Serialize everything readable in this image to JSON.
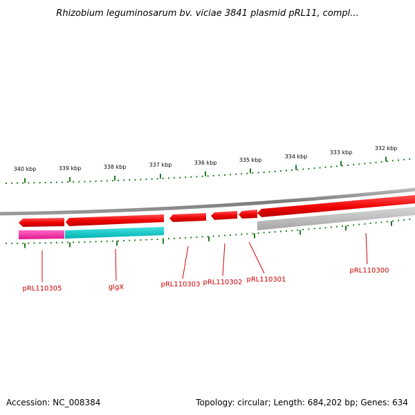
{
  "title": "Rhizobium leguminosarum bv. viciae 3841 plasmid pRL11, compl...",
  "accession_text": "Accession: NC_008384",
  "summary_text": "Topology: circular; Length: 684,202 bp; Genes: 634",
  "colors": {
    "background": "#ffffff",
    "backbone": "#808080",
    "cds_forward": "#ff0000",
    "cds_highlight_pink": "#ff2faa",
    "cds_highlight_cyan": "#00c8c8",
    "cds_shadow_grey": "#bcbcbc",
    "scale_ticks": "#1f7a1f",
    "gene_label": "#cc0000"
  },
  "scale_labels": [
    "340 kbp",
    "339 kbp",
    "338 kbp",
    "337 kbp",
    "336 kbp",
    "335 kbp",
    "334 kbp",
    "333 kbp",
    "332 kbp"
  ],
  "genes": [
    {
      "label": "pRL110305"
    },
    {
      "label": "glgX"
    },
    {
      "label": "pRL110303"
    },
    {
      "label": "pRL110302"
    },
    {
      "label": "pRL110301"
    },
    {
      "label": "pRL110300"
    }
  ]
}
